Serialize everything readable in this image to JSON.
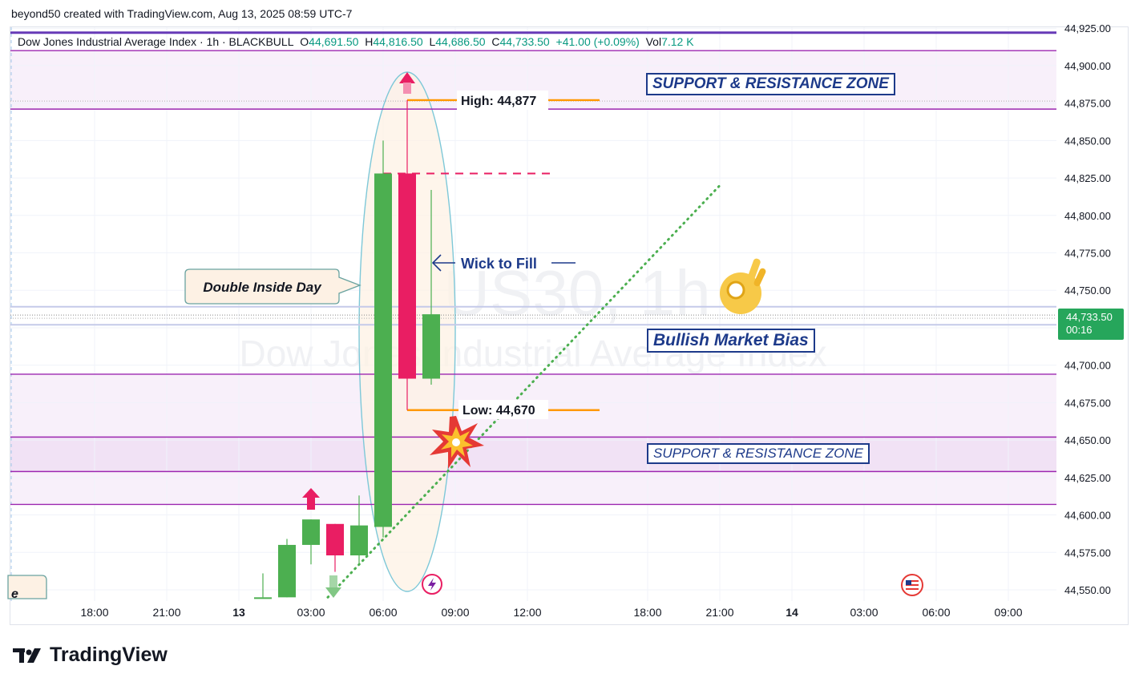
{
  "header": {
    "credit": "beyond50 created with TradingView.com, Aug 13, 2025 08:59 UTC-7"
  },
  "legend": {
    "symbol": "Dow Jones Industrial Average Index · 1h · BLACKBULL",
    "o_label": "O",
    "o_value": "44,691.50",
    "h_label": "H",
    "h_value": "44,816.50",
    "l_label": "L",
    "l_value": "44,686.50",
    "c_label": "C",
    "c_value": "44,733.50",
    "change": "+41.00 (+0.09%)",
    "vol_label": "Vol",
    "vol_value": "7.12 K"
  },
  "watermark": {
    "ticker": "US30, 1h",
    "name": "Dow Jones Industrial Average Index"
  },
  "price_badge": {
    "price": "44,733.50",
    "countdown": "00:16"
  },
  "annotations": {
    "zone_top": "SUPPORT & RESISTANCE ZONE",
    "zone_bottom": "SUPPORT & RESISTANCE ZONE",
    "high_label": "High: 44,877",
    "low_label": "Low: 44,670",
    "wick_label": "Wick to Fill",
    "callout": "Double Inside Day",
    "bias": "Bullish Market Bias",
    "left_fragment": "e"
  },
  "footer": {
    "brand": "TradingView"
  },
  "colors": {
    "up": "#4caf50",
    "down": "#e91e63",
    "zone_line": "#9c27b0",
    "zone_fill": "#f3e5f5",
    "annotation_text": "#1d3a8a",
    "level_line": "#ff9800",
    "trendline": "#4caf50",
    "price_badge": "#26a65b"
  },
  "chart_data": {
    "type": "candlestick",
    "interval": "1h",
    "y_ticks": [
      44925,
      44900,
      44875,
      44850,
      44825,
      44800,
      44775,
      44750,
      44725,
      44700,
      44675,
      44650,
      44625,
      44600,
      44575,
      44550
    ],
    "y_tick_labels": [
      "44,925.00",
      "44,900.00",
      "44,875.00",
      "44,850.00",
      "44,825.00",
      "44,800.00",
      "44,775.00",
      "44,750.00",
      "44,725.00",
      "44,700.00",
      "44,675.00",
      "44,650.00",
      "44,625.00",
      "44,600.00",
      "44,575.00",
      "44,550.00"
    ],
    "ylim": [
      44548,
      44930
    ],
    "x_ticks": [
      {
        "label": "18:00",
        "bar": -12
      },
      {
        "label": "21:00",
        "bar": -9
      },
      {
        "label": "13",
        "bar": -6
      },
      {
        "label": "03:00",
        "bar": -3
      },
      {
        "label": "06:00",
        "bar": 0
      },
      {
        "label": "09:00",
        "bar": 3
      },
      {
        "label": "12:00",
        "bar": 6
      },
      {
        "label": "18:00",
        "bar": 11
      },
      {
        "label": "21:00",
        "bar": 14
      },
      {
        "label": "14",
        "bar": 17
      },
      {
        "label": "03:00",
        "bar": 20
      },
      {
        "label": "06:00",
        "bar": 23
      },
      {
        "label": "09:00",
        "bar": 26
      }
    ],
    "candles": [
      {
        "bar": -5,
        "open": 44545,
        "high": 44561,
        "low": 44545,
        "close": 44545
      },
      {
        "bar": -4,
        "open": 44545,
        "high": 44584,
        "low": 44545,
        "close": 44580
      },
      {
        "bar": -3,
        "open": 44580,
        "high": 44597,
        "low": 44567,
        "close": 44597
      },
      {
        "bar": -2,
        "open": 44594,
        "high": 44594,
        "low": 44562,
        "close": 44573
      },
      {
        "bar": -1,
        "open": 44573,
        "high": 44613,
        "low": 44567,
        "close": 44593
      },
      {
        "bar": 0,
        "open": 44592,
        "high": 44850,
        "low": 44585,
        "close": 44828
      },
      {
        "bar": 1,
        "open": 44828,
        "high": 44877,
        "low": 44670,
        "close": 44691
      },
      {
        "bar": 2,
        "open": 44691,
        "high": 44817,
        "low": 44687,
        "close": 44734
      }
    ],
    "levels": [
      {
        "name": "top-line",
        "price": 44922
      },
      {
        "name": "zone-top-upper",
        "price": 44910
      },
      {
        "name": "zone-top-lower",
        "price": 44871
      },
      {
        "name": "lavender-upper",
        "price": 44739
      },
      {
        "name": "lavender-lower",
        "price": 44727
      },
      {
        "name": "zone-mid-upper",
        "price": 44694
      },
      {
        "name": "zone-bottom-upper",
        "price": 44652
      },
      {
        "name": "zone-bottom-lower",
        "price": 44629
      },
      {
        "name": "zone-base-lower",
        "price": 44607
      }
    ],
    "high_level": 44877,
    "low_level": 44670,
    "dashed_level": 44828,
    "last_price": 44733.5,
    "trendline": {
      "from": {
        "bar": -2.3,
        "price": 44545
      },
      "to": {
        "bar": 14,
        "price": 44820
      }
    }
  }
}
